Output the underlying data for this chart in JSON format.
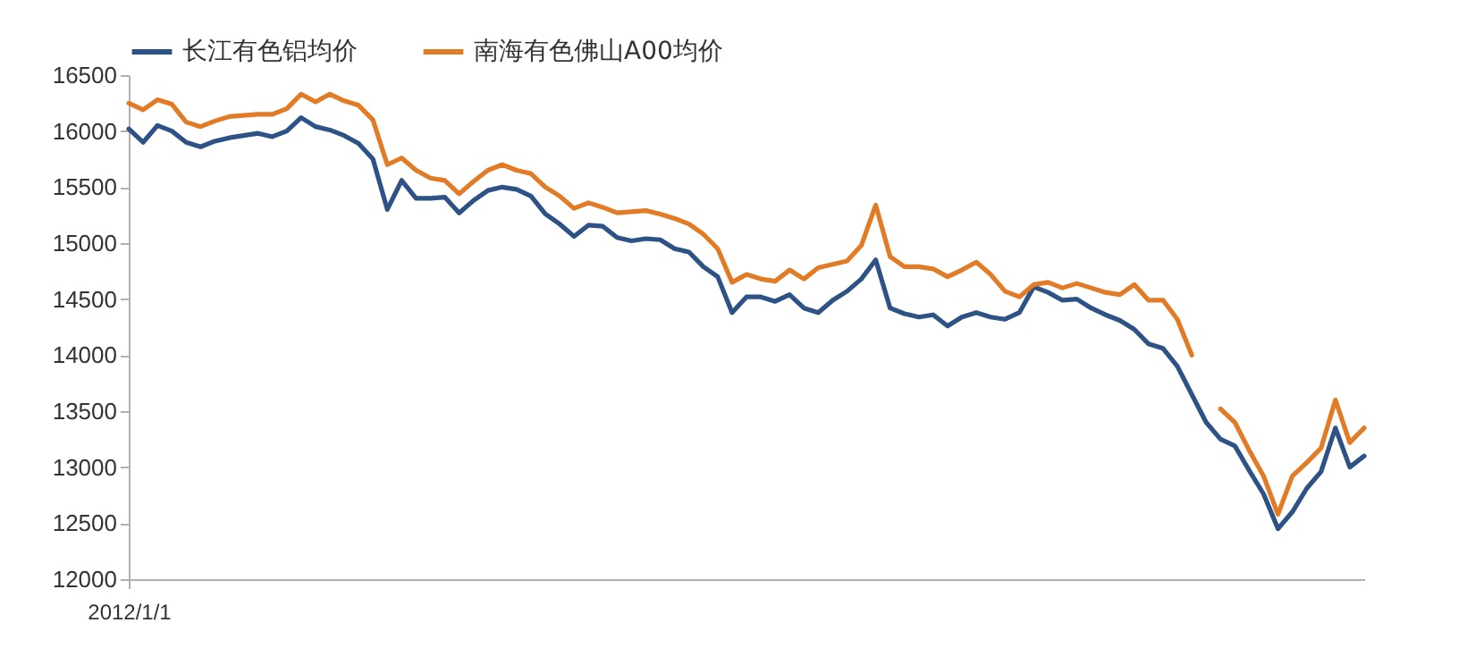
{
  "chart_data": {
    "type": "line",
    "categories": [
      "2012/1/1",
      null,
      null,
      null,
      null,
      null,
      null,
      null,
      null,
      null,
      null,
      null,
      null,
      null,
      null,
      null,
      null,
      null,
      null,
      null,
      null,
      null,
      null,
      null,
      null,
      null,
      null,
      null,
      null,
      null,
      null,
      null,
      null,
      null,
      null,
      null,
      null,
      null,
      null,
      null,
      null,
      null,
      null,
      null,
      null,
      null,
      null,
      null,
      null,
      null,
      null,
      null,
      null,
      null,
      null,
      null,
      null,
      null,
      null,
      null,
      null,
      null,
      null,
      null,
      null,
      null,
      null,
      null,
      null,
      null,
      null,
      null,
      null,
      null,
      null,
      null,
      null,
      null,
      null,
      null,
      null,
      null,
      null,
      null,
      null,
      null,
      null
    ],
    "series": [
      {
        "name": "长江有色铝均价",
        "color": "#2c5286",
        "values": [
          16020,
          15900,
          16050,
          16000,
          15900,
          15860,
          15910,
          15940,
          15960,
          15980,
          15950,
          16000,
          16120,
          16040,
          16010,
          15960,
          15890,
          15750,
          15300,
          15560,
          15400,
          15400,
          15410,
          15270,
          15380,
          15470,
          15500,
          15480,
          15420,
          15260,
          15170,
          15060,
          15160,
          15150,
          15050,
          15020,
          15040,
          15030,
          14950,
          14920,
          14790,
          14700,
          14380,
          14520,
          14520,
          14480,
          14540,
          14420,
          14380,
          14490,
          14570,
          14680,
          14850,
          14420,
          14370,
          14340,
          14360,
          14260,
          14340,
          14380,
          14340,
          14320,
          14380,
          14610,
          14560,
          14490,
          14500,
          14420,
          14360,
          14310,
          14230,
          14100,
          14060,
          13900,
          13650,
          13400,
          13250,
          13190,
          12970,
          12760,
          12450,
          12600,
          12810,
          12960,
          13350,
          13000,
          13100
        ]
      },
      {
        "name": "南海有色佛山A00均价",
        "color": "#e27b26",
        "values": [
          16250,
          16190,
          16280,
          16240,
          16080,
          16040,
          16090,
          16130,
          16140,
          16150,
          16150,
          16200,
          16330,
          16260,
          16330,
          16270,
          16230,
          16100,
          15700,
          15760,
          15650,
          15580,
          15560,
          15440,
          15550,
          15650,
          15700,
          15650,
          15620,
          15500,
          15420,
          15310,
          15360,
          15320,
          15270,
          15280,
          15290,
          15260,
          15220,
          15170,
          15080,
          14950,
          14650,
          14720,
          14680,
          14660,
          14760,
          14680,
          14780,
          14810,
          14840,
          14980,
          15340,
          14880,
          14790,
          14790,
          14770,
          14700,
          14760,
          14830,
          14720,
          14570,
          14520,
          14630,
          14650,
          14600,
          14640,
          14600,
          14560,
          14540,
          14630,
          14490,
          14490,
          14320,
          14000,
          null,
          13520,
          13400,
          13150,
          12920,
          12580,
          12920,
          13040,
          13170,
          13600,
          13220,
          13350
        ]
      }
    ],
    "ylim": [
      12000,
      16500
    ],
    "yticks": [
      12000,
      12500,
      13000,
      13500,
      14000,
      14500,
      15000,
      15500,
      16000,
      16500
    ],
    "grid": false,
    "legend": "top",
    "marker": "none",
    "line_style": "solid"
  }
}
